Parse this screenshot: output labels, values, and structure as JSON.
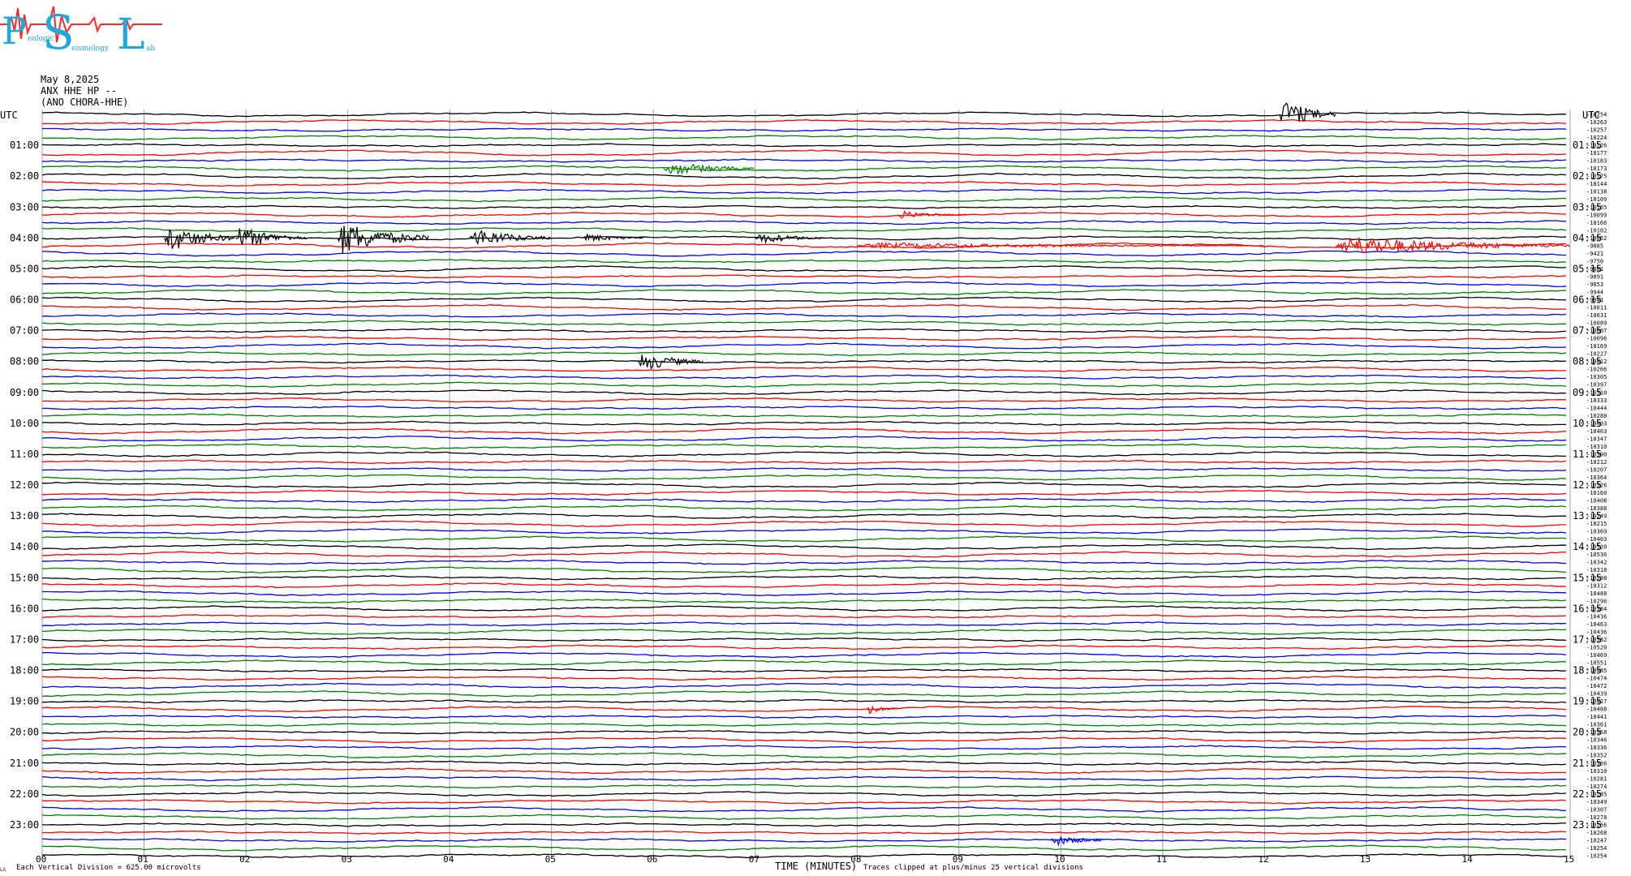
{
  "header": {
    "date": "May 8,2025",
    "station": "ANX HHE HP --",
    "location": "(ANO CHORA-HHE)"
  },
  "logo": {
    "letters": [
      "P",
      "S",
      "L"
    ],
    "fragments": [
      "eologic",
      "eismology",
      "ab"
    ]
  },
  "chart_data": {
    "type": "line",
    "title": "",
    "xlabel": "TIME (MINUTES)",
    "ylabel": "",
    "xlim": [
      0,
      15
    ],
    "x_ticks": [
      "00",
      "01",
      "02",
      "03",
      "04",
      "05",
      "06",
      "07",
      "08",
      "09",
      "10",
      "11",
      "12",
      "13",
      "14",
      "15"
    ],
    "left_axis_label": "UTC",
    "right_axis_label": "UTC",
    "left_hour_labels": [
      "01:00",
      "02:00",
      "03:00",
      "04:00",
      "05:00",
      "06:00",
      "07:00",
      "08:00",
      "09:00",
      "10:00",
      "11:00",
      "12:00",
      "13:00",
      "14:00",
      "15:00",
      "16:00",
      "17:00",
      "18:00",
      "19:00",
      "20:00",
      "21:00",
      "22:00",
      "23:00"
    ],
    "right_hour_labels": [
      "01:15",
      "02:15",
      "03:15",
      "04:15",
      "05:15",
      "06:15",
      "07:15",
      "08:15",
      "09:15",
      "10:15",
      "11:15",
      "12:15",
      "13:15",
      "14:15",
      "15:15",
      "16:15",
      "17:15",
      "18:15",
      "19:15",
      "20:15",
      "21:15",
      "22:15",
      "23:15"
    ],
    "traces_per_hour": 4,
    "trace_count": 97,
    "trace_colors": [
      "#000000",
      "#ff0000",
      "#0000ff",
      "#008000"
    ],
    "grid_color": "#a0a0a0",
    "trace_offsets": [
      -10254,
      -10263,
      -10257,
      -10224,
      -10226,
      -10177,
      -10183,
      -10173,
      -10175,
      -10144,
      -10138,
      -10109,
      -10165,
      -10099,
      -10166,
      -10102,
      -10052,
      -9885,
      -9421,
      -9750,
      -9881,
      -9891,
      -9853,
      -9944,
      -9941,
      -10011,
      -10031,
      -10089,
      -10007,
      -10096,
      -10169,
      -10227,
      -10412,
      -10266,
      -10305,
      -10397,
      -10310,
      -10333,
      -10444,
      -10288,
      -10403,
      -10463,
      -10347,
      -10310,
      -10390,
      -10212,
      -10207,
      -10364,
      -10326,
      -10160,
      -10408,
      -10388,
      -10249,
      -10215,
      -10369,
      -10403,
      -10520,
      -10536,
      -10342,
      -10318,
      -10298,
      -10312,
      -10488,
      -10296,
      -10384,
      -10436,
      -10463,
      -10436,
      -10582,
      -10520,
      -10469,
      -10551,
      -10485,
      -10474,
      -10472,
      -10439,
      -10427,
      -10488,
      -10441,
      -10361,
      -10358,
      -10346,
      -10336,
      -10352,
      -10366,
      -10310,
      -10281,
      -10274,
      -10285,
      -10349,
      -10307,
      -10278,
      -10256,
      -10268,
      -10247,
      -10254,
      -10254
    ],
    "events": [
      {
        "trace": 16,
        "start_min": 1.2,
        "end_min": 1.9,
        "amp": 20
      },
      {
        "trace": 16,
        "start_min": 1.9,
        "end_min": 2.6,
        "amp": 16
      },
      {
        "trace": 16,
        "start_min": 2.9,
        "end_min": 3.8,
        "amp": 24
      },
      {
        "trace": 16,
        "start_min": 4.2,
        "end_min": 5.0,
        "amp": 14
      },
      {
        "trace": 16,
        "start_min": 5.3,
        "end_min": 5.9,
        "amp": 6
      },
      {
        "trace": 16,
        "start_min": 7.0,
        "end_min": 7.7,
        "amp": 8
      },
      {
        "trace": 17,
        "start_min": 8.0,
        "end_min": 12.0,
        "amp": 4
      },
      {
        "trace": 17,
        "start_min": 12.7,
        "end_min": 15.0,
        "amp": 14
      },
      {
        "trace": 0,
        "start_min": 12.15,
        "end_min": 12.7,
        "amp": 22
      },
      {
        "trace": 7,
        "start_min": 6.1,
        "end_min": 7.0,
        "amp": 10
      },
      {
        "trace": 13,
        "start_min": 8.4,
        "end_min": 9.1,
        "amp": 5
      },
      {
        "trace": 32,
        "start_min": 5.85,
        "end_min": 6.5,
        "amp": 14
      },
      {
        "trace": 77,
        "start_min": 8.1,
        "end_min": 8.4,
        "amp": 7
      },
      {
        "trace": 94,
        "start_min": 9.9,
        "end_min": 10.4,
        "amp": 8
      }
    ],
    "footer_left": "Each Vertical Division =  625.00 microvolts",
    "footer_right": "Traces clipped at plus/minus 25 vertical divisions",
    "footer_mark": "LS"
  }
}
